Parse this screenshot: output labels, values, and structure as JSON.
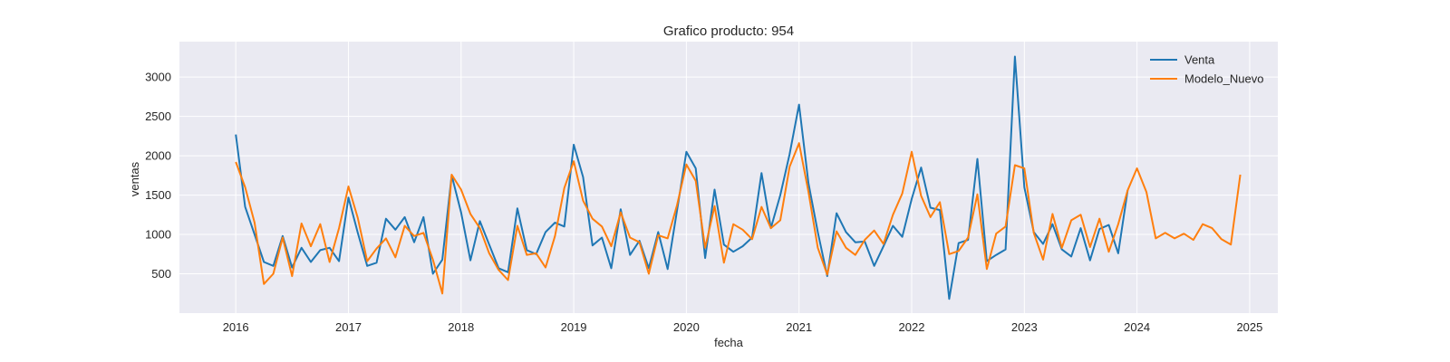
{
  "chart_data": {
    "type": "line",
    "title": "Grafico producto: 954",
    "xlabel": "fecha",
    "ylabel": "ventas",
    "xlim": [
      "2015-07",
      "2025-04"
    ],
    "ylim": [
      0,
      3450
    ],
    "x_ticks": [
      "2016",
      "2017",
      "2018",
      "2019",
      "2020",
      "2021",
      "2022",
      "2023",
      "2024",
      "2025"
    ],
    "y_ticks": [
      500,
      1000,
      1500,
      2000,
      2500,
      3000
    ],
    "grid": true,
    "legend_position": "top-right",
    "series": [
      {
        "name": "Venta",
        "color": "#1f77b4",
        "x": [
          "2016-01",
          "2016-02",
          "2016-03",
          "2016-04",
          "2016-05",
          "2016-06",
          "2016-07",
          "2016-08",
          "2016-09",
          "2016-10",
          "2016-11",
          "2016-12",
          "2017-01",
          "2017-02",
          "2017-03",
          "2017-04",
          "2017-05",
          "2017-06",
          "2017-07",
          "2017-08",
          "2017-09",
          "2017-10",
          "2017-11",
          "2017-12",
          "2018-01",
          "2018-02",
          "2018-03",
          "2018-04",
          "2018-05",
          "2018-06",
          "2018-07",
          "2018-08",
          "2018-09",
          "2018-10",
          "2018-11",
          "2018-12",
          "2019-01",
          "2019-02",
          "2019-03",
          "2019-04",
          "2019-05",
          "2019-06",
          "2019-07",
          "2019-08",
          "2019-09",
          "2019-10",
          "2019-11",
          "2019-12",
          "2020-01",
          "2020-02",
          "2020-03",
          "2020-04",
          "2020-05",
          "2020-06",
          "2020-07",
          "2020-08",
          "2020-09",
          "2020-10",
          "2020-11",
          "2020-12",
          "2021-01",
          "2021-02",
          "2021-03",
          "2021-04",
          "2021-05",
          "2021-06",
          "2021-07",
          "2021-08",
          "2021-09",
          "2021-10",
          "2021-11",
          "2021-12",
          "2022-01",
          "2022-02",
          "2022-03",
          "2022-04",
          "2022-05",
          "2022-06",
          "2022-07",
          "2022-08",
          "2022-09",
          "2022-10",
          "2022-11",
          "2022-12",
          "2023-01",
          "2023-02",
          "2023-03",
          "2023-04",
          "2023-05",
          "2023-06",
          "2023-07",
          "2023-08",
          "2023-09",
          "2023-10",
          "2023-11",
          "2023-12"
        ],
        "values": [
          2270,
          1350,
          1000,
          650,
          600,
          980,
          580,
          830,
          650,
          800,
          830,
          660,
          1470,
          1020,
          600,
          640,
          1200,
          1060,
          1220,
          900,
          1220,
          500,
          680,
          1750,
          1280,
          670,
          1170,
          870,
          570,
          520,
          1330,
          800,
          750,
          1030,
          1150,
          1100,
          2140,
          1730,
          860,
          960,
          570,
          1320,
          740,
          920,
          570,
          1030,
          560,
          1300,
          2050,
          1840,
          700,
          1570,
          870,
          780,
          850,
          960,
          1780,
          1080,
          1500,
          2020,
          2650,
          1650,
          1030,
          470,
          1270,
          1030,
          900,
          910,
          600,
          850,
          1110,
          970,
          1450,
          1850,
          1340,
          1310,
          180,
          890,
          930,
          1960,
          660,
          740,
          810,
          3260,
          1600,
          1030,
          880,
          1130,
          810,
          720,
          1080,
          670,
          1070,
          1120,
          760,
          1560
        ]
      },
      {
        "name": "Modelo_Nuevo",
        "color": "#ff7f0e",
        "x": [
          "2016-01",
          "2016-02",
          "2016-03",
          "2016-04",
          "2016-05",
          "2016-06",
          "2016-07",
          "2016-08",
          "2016-09",
          "2016-10",
          "2016-11",
          "2016-12",
          "2017-01",
          "2017-02",
          "2017-03",
          "2017-04",
          "2017-05",
          "2017-06",
          "2017-07",
          "2017-08",
          "2017-09",
          "2017-10",
          "2017-11",
          "2017-12",
          "2018-01",
          "2018-02",
          "2018-03",
          "2018-04",
          "2018-05",
          "2018-06",
          "2018-07",
          "2018-08",
          "2018-09",
          "2018-10",
          "2018-11",
          "2018-12",
          "2019-01",
          "2019-02",
          "2019-03",
          "2019-04",
          "2019-05",
          "2019-06",
          "2019-07",
          "2019-08",
          "2019-09",
          "2019-10",
          "2019-11",
          "2019-12",
          "2020-01",
          "2020-02",
          "2020-03",
          "2020-04",
          "2020-05",
          "2020-06",
          "2020-07",
          "2020-08",
          "2020-09",
          "2020-10",
          "2020-11",
          "2020-12",
          "2021-01",
          "2021-02",
          "2021-03",
          "2021-04",
          "2021-05",
          "2021-06",
          "2021-07",
          "2021-08",
          "2021-09",
          "2021-10",
          "2021-11",
          "2021-12",
          "2022-01",
          "2022-02",
          "2022-03",
          "2022-04",
          "2022-05",
          "2022-06",
          "2022-07",
          "2022-08",
          "2022-09",
          "2022-10",
          "2022-11",
          "2022-12",
          "2023-01",
          "2023-02",
          "2023-03",
          "2023-04",
          "2023-05",
          "2023-06",
          "2023-07",
          "2023-08",
          "2023-09",
          "2023-10",
          "2023-11",
          "2023-12",
          "2024-01",
          "2024-02",
          "2024-03",
          "2024-04",
          "2024-05",
          "2024-06",
          "2024-07",
          "2024-08",
          "2024-09",
          "2024-10",
          "2024-11",
          "2024-12"
        ],
        "values": [
          1920,
          1600,
          1150,
          370,
          500,
          960,
          470,
          1140,
          850,
          1130,
          650,
          1080,
          1610,
          1210,
          660,
          820,
          950,
          710,
          1110,
          980,
          1020,
          680,
          250,
          1760,
          1570,
          1260,
          1080,
          760,
          550,
          420,
          1110,
          740,
          760,
          580,
          980,
          1590,
          1930,
          1430,
          1200,
          1100,
          850,
          1280,
          960,
          900,
          500,
          990,
          950,
          1370,
          1890,
          1680,
          830,
          1360,
          640,
          1130,
          1060,
          940,
          1350,
          1080,
          1180,
          1860,
          2160,
          1540,
          830,
          490,
          1040,
          830,
          740,
          930,
          1050,
          880,
          1250,
          1520,
          2050,
          1490,
          1220,
          1410,
          750,
          790,
          960,
          1510,
          560,
          1010,
          1100,
          1880,
          1840,
          1020,
          680,
          1260,
          830,
          1180,
          1250,
          840,
          1200,
          780,
          1130,
          1560,
          1840,
          1540,
          950,
          1020,
          950,
          1010,
          930,
          1130,
          1080,
          940,
          870,
          1760
        ]
      }
    ]
  }
}
